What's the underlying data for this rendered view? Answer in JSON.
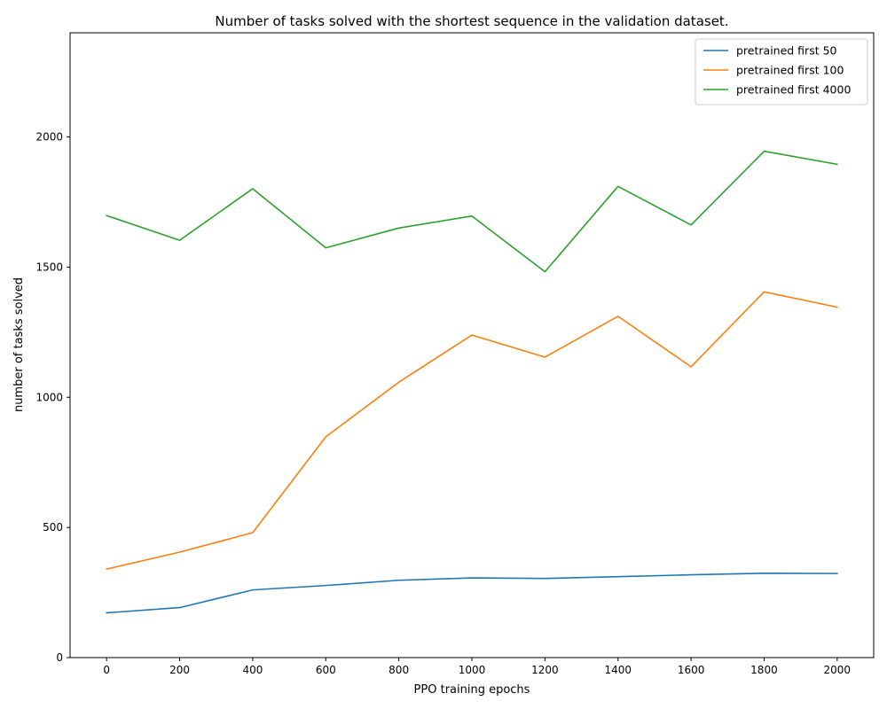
{
  "chart_data": {
    "type": "line",
    "title": "Number of tasks solved with the shortest sequence in the validation dataset.",
    "xlabel": "PPO training epochs",
    "ylabel": "number of tasks solved",
    "xlim": [
      -100,
      2100
    ],
    "ylim": [
      0,
      2400
    ],
    "xticks": [
      0,
      200,
      400,
      600,
      800,
      1000,
      1200,
      1400,
      1600,
      1800,
      2000
    ],
    "yticks": [
      0,
      500,
      1000,
      1500,
      2000
    ],
    "grid": false,
    "legend_position": "top-right",
    "x": [
      0,
      200,
      400,
      600,
      800,
      1000,
      1200,
      1400,
      1600,
      1800,
      2000
    ],
    "series": [
      {
        "name": "pretrained first 50",
        "color": "#1f77b4",
        "values": [
          172,
          192,
          260,
          277,
          297,
          306,
          304,
          311,
          318,
          324,
          323
        ]
      },
      {
        "name": "pretrained first 100",
        "color": "#ff7f0e",
        "values": [
          340,
          405,
          480,
          848,
          1058,
          1239,
          1154,
          1311,
          1117,
          1405,
          1346
        ]
      },
      {
        "name": "pretrained first 4000",
        "color": "#2ca02c",
        "values": [
          1698,
          1603,
          1801,
          1574,
          1650,
          1696,
          1482,
          1810,
          1662,
          1945,
          1895
        ]
      }
    ]
  }
}
